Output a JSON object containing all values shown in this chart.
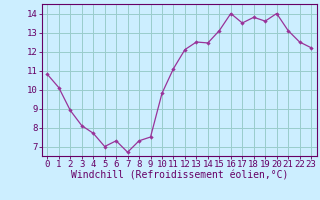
{
  "x": [
    0,
    1,
    2,
    3,
    4,
    5,
    6,
    7,
    8,
    9,
    10,
    11,
    12,
    13,
    14,
    15,
    16,
    17,
    18,
    19,
    20,
    21,
    22,
    23
  ],
  "y": [
    10.8,
    10.1,
    8.9,
    8.1,
    7.7,
    7.0,
    7.3,
    6.7,
    7.3,
    7.5,
    9.8,
    11.1,
    12.1,
    12.5,
    12.45,
    13.1,
    14.0,
    13.5,
    13.8,
    13.6,
    14.0,
    13.1,
    12.5,
    12.2
  ],
  "line_color": "#993399",
  "marker_color": "#993399",
  "bg_color": "#cceeff",
  "grid_color": "#99cccc",
  "xlabel": "Windchill (Refroidissement éolien,°C)",
  "xlim": [
    -0.5,
    23.5
  ],
  "ylim": [
    6.5,
    14.5
  ],
  "yticks": [
    7,
    8,
    9,
    10,
    11,
    12,
    13,
    14
  ],
  "xticks": [
    0,
    1,
    2,
    3,
    4,
    5,
    6,
    7,
    8,
    9,
    10,
    11,
    12,
    13,
    14,
    15,
    16,
    17,
    18,
    19,
    20,
    21,
    22,
    23
  ],
  "spine_color": "#660066",
  "label_fontsize": 7,
  "tick_fontsize": 6.5
}
